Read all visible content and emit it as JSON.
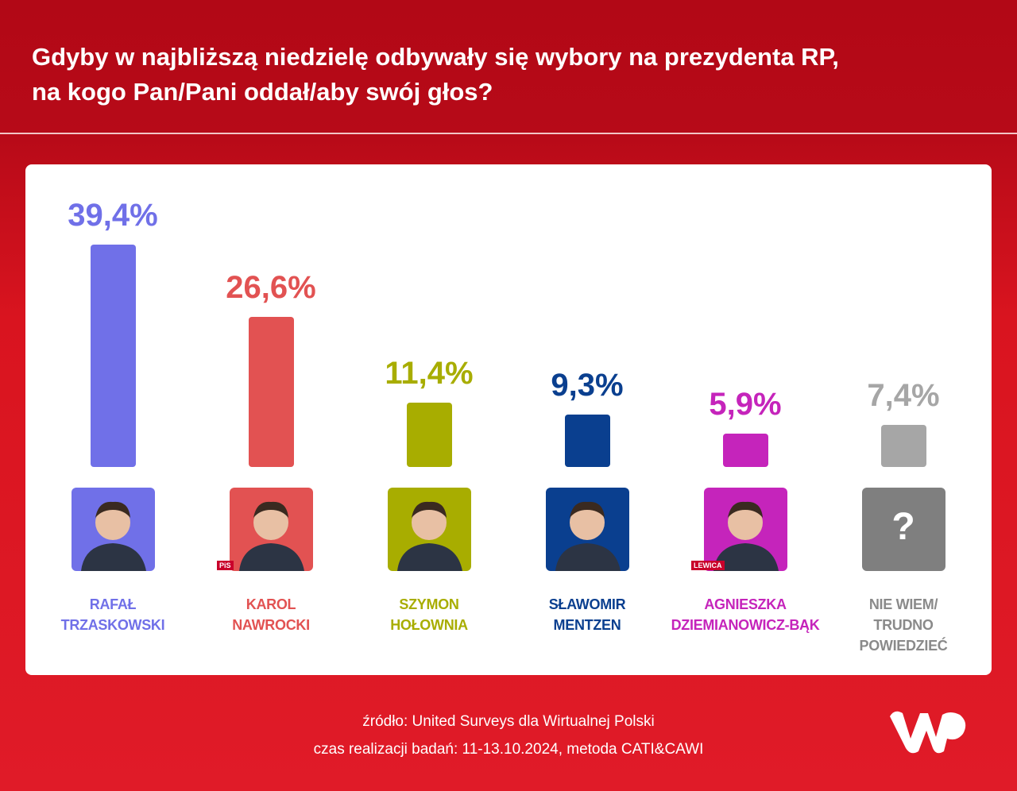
{
  "chart_data": {
    "type": "bar",
    "title": "Gdyby w najbliższą niedzielę odbywały się wybory na prezydenta RP,\nna kogo Pan/Pani oddał/aby swój głos?",
    "categories": [
      "RAFAŁ\nTRZASKOWSKI",
      "KAROL\nNAWROCKI",
      "SZYMON\nHOŁOWNIA",
      "SŁAWOMIR\nMENTZEN",
      "AGNIESZKA\nDZIEMIANOWICZ-BĄK",
      "NIE WIEM/\nTRUDNO\nPOWIEDZIEĆ"
    ],
    "values": [
      39.4,
      26.6,
      11.4,
      9.3,
      5.9,
      7.4
    ],
    "value_labels": [
      "39,4%",
      "26,6%",
      "11,4%",
      "9,3%",
      "5,9%",
      "7,4%"
    ],
    "colors": [
      "#7070e8",
      "#e25252",
      "#a8ad00",
      "#0a3f8f",
      "#c524bb",
      "#a6a6a6"
    ],
    "badges": [
      null,
      "PiS",
      null,
      null,
      "LEWICA",
      null
    ],
    "unknown_mark": "?",
    "source": "źródło: United Surveys dla Wirtualnej Polski",
    "note": "czas realizacji badań: 11-13.10.2024, metoda CATI&CAWI"
  }
}
